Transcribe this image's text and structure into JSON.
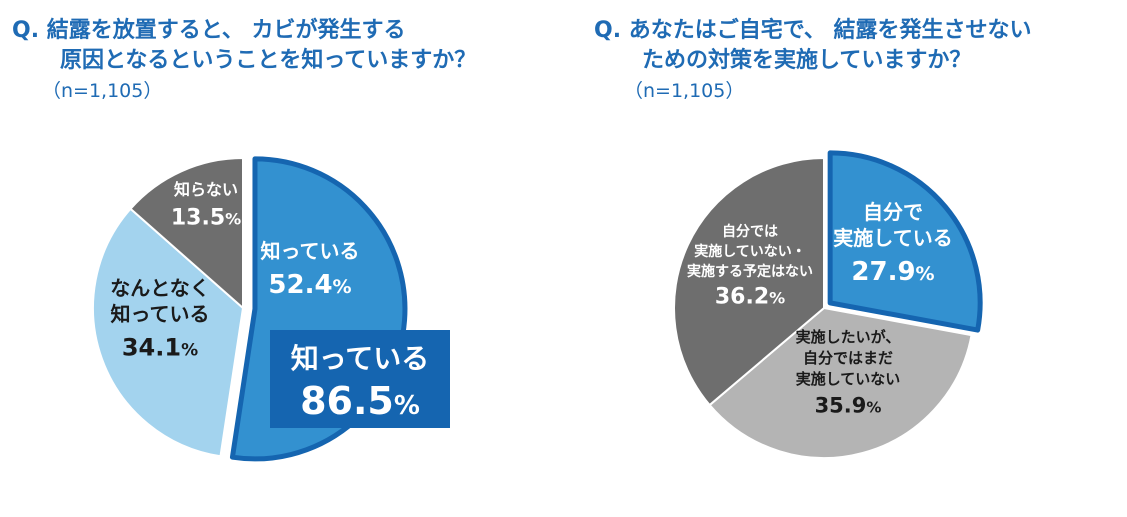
{
  "question1": {
    "prefix": "Q.",
    "line1": "結露を放置すると、 カビが発生する",
    "line2": "原因となるということを知っていますか？",
    "n": "（n=1,105）"
  },
  "question2": {
    "prefix": "Q.",
    "line1": "あなたはご自宅で、 結露を発生させない",
    "line2": "ための対策を実施していますか？",
    "n": "（n=1,105）"
  },
  "colors": {
    "title": "#1f6bb4",
    "dark_blue": "#1565b0",
    "mid_blue": "#3391d0",
    "light_blue": "#a3d3ee",
    "dark_gray": "#6e6e6e",
    "light_gray": "#b4b4b4"
  },
  "callout": {
    "label": "知っている",
    "value": "86.5",
    "unit": "%"
  },
  "chart_data": [
    {
      "type": "pie",
      "slices": [
        {
          "label": "知っている",
          "value": 52.4,
          "value_text": "52.4",
          "unit": "%",
          "color": "#3391d0",
          "exploded": true
        },
        {
          "label_lines": [
            "なんとなく",
            "知っている"
          ],
          "value": 34.1,
          "value_text": "34.1",
          "unit": "%",
          "color": "#a3d3ee",
          "exploded": false
        },
        {
          "label": "知らない",
          "value": 13.5,
          "value_text": "13.5",
          "unit": "%",
          "color": "#6e6e6e",
          "exploded": false
        }
      ]
    },
    {
      "type": "pie",
      "slices": [
        {
          "label_lines": [
            "自分で",
            "実施している"
          ],
          "value": 27.9,
          "value_text": "27.9",
          "unit": "%",
          "color": "#3391d0",
          "exploded": true
        },
        {
          "label_lines": [
            "実施したいが、",
            "自分ではまだ",
            "実施していない"
          ],
          "value": 35.9,
          "value_text": "35.9",
          "unit": "%",
          "color": "#b4b4b4",
          "exploded": false
        },
        {
          "label_lines": [
            "自分では",
            "実施していない・",
            "実施する予定はない"
          ],
          "value": 36.2,
          "value_text": "36.2",
          "unit": "%",
          "color": "#6e6e6e",
          "exploded": false
        }
      ]
    }
  ]
}
